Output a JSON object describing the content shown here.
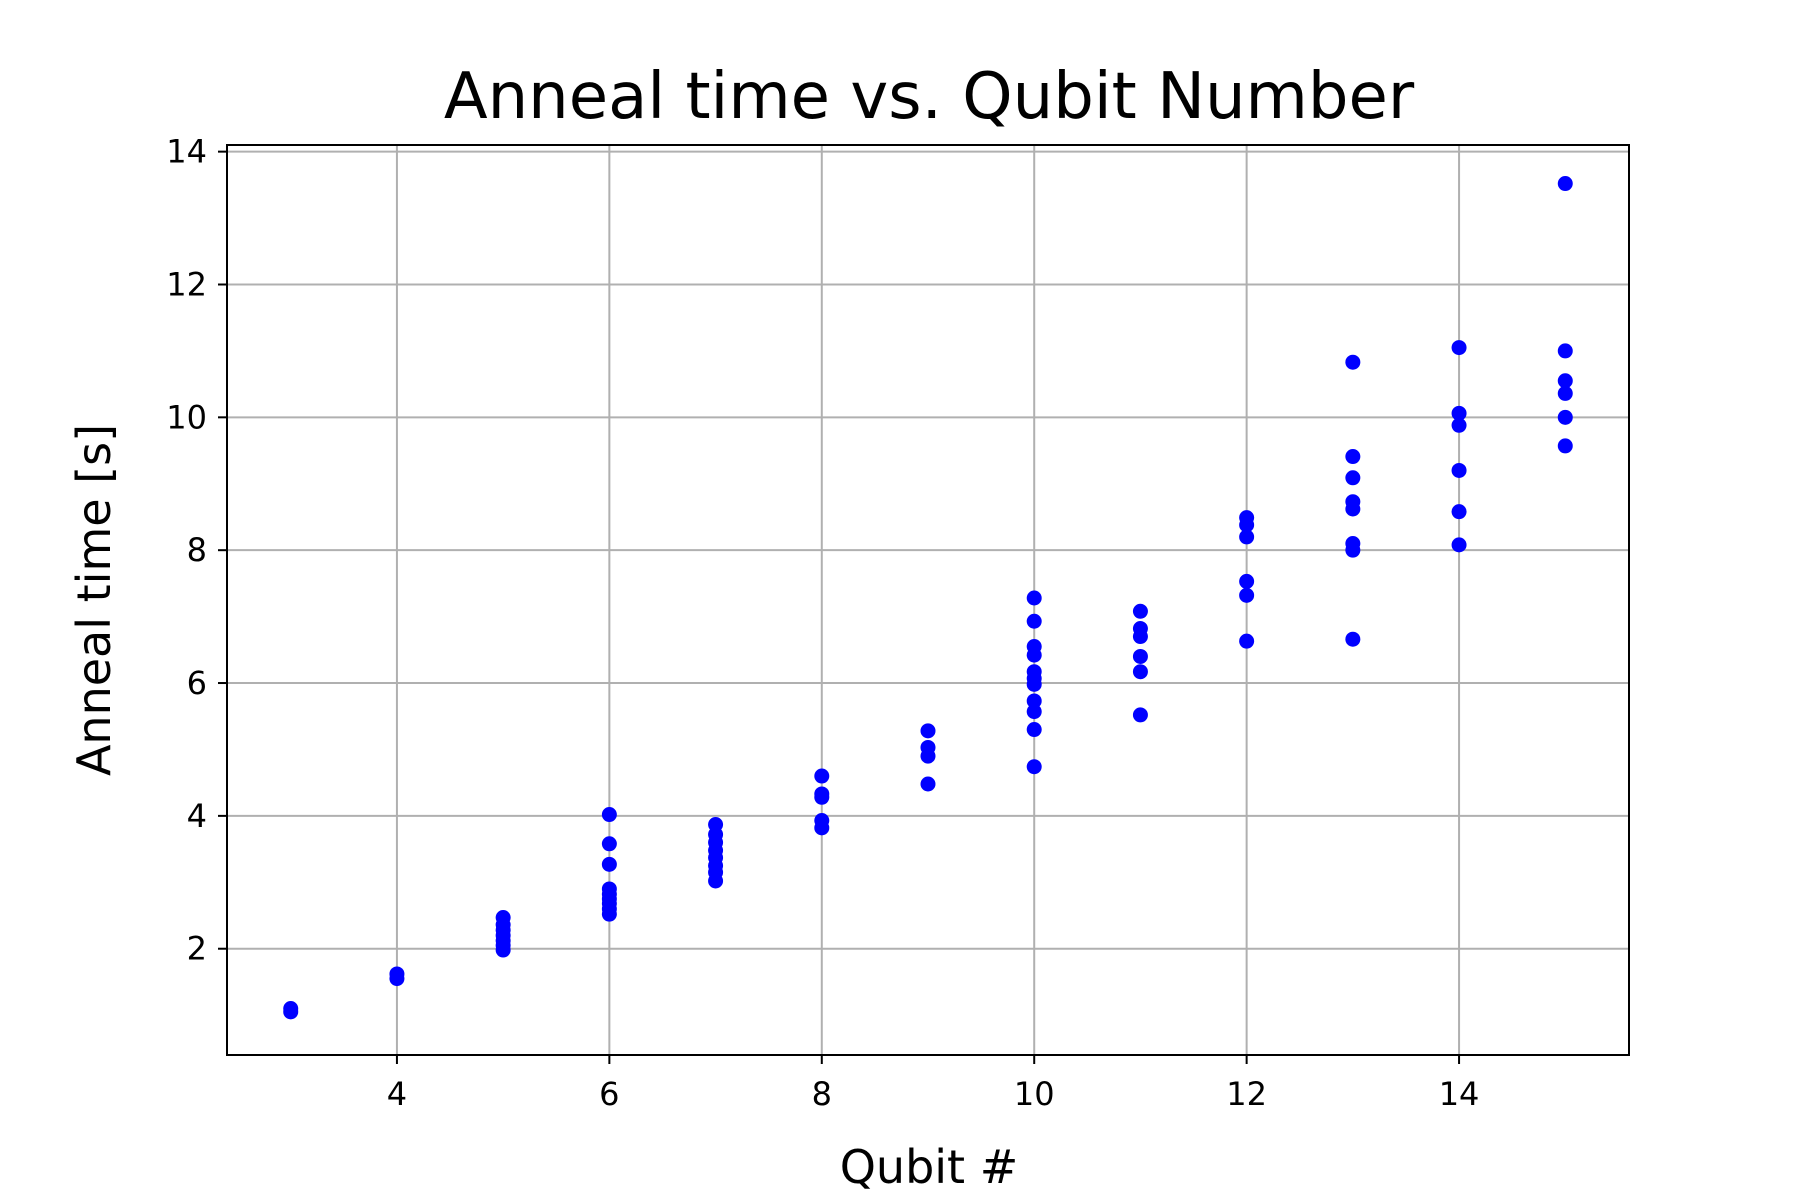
{
  "chart_data": {
    "type": "scatter",
    "title": "Anneal time vs. Qubit Number",
    "xlabel": "Qubit #",
    "ylabel": "Anneal time  [s]",
    "xlim": [
      2.4,
      15.6
    ],
    "ylim": [
      0.4,
      14.1
    ],
    "xticks": [
      4,
      6,
      8,
      10,
      12,
      14
    ],
    "yticks": [
      2,
      4,
      6,
      8,
      10,
      12,
      14
    ],
    "grid": true,
    "marker_color": "#0000ff",
    "series": [
      {
        "points": [
          [
            3,
            1.05
          ],
          [
            3,
            1.1
          ],
          [
            4,
            1.55
          ],
          [
            4,
            1.62
          ],
          [
            5,
            1.98
          ],
          [
            5,
            2.05
          ],
          [
            5,
            2.12
          ],
          [
            5,
            2.2
          ],
          [
            5,
            2.28
          ],
          [
            5,
            2.36
          ],
          [
            5,
            2.47
          ],
          [
            6,
            2.52
          ],
          [
            6,
            2.6
          ],
          [
            6,
            2.68
          ],
          [
            6,
            2.75
          ],
          [
            6,
            2.82
          ],
          [
            6,
            2.9
          ],
          [
            6,
            3.27
          ],
          [
            6,
            3.58
          ],
          [
            6,
            4.02
          ],
          [
            7,
            3.02
          ],
          [
            7,
            3.15
          ],
          [
            7,
            3.25
          ],
          [
            7,
            3.37
          ],
          [
            7,
            3.48
          ],
          [
            7,
            3.6
          ],
          [
            7,
            3.72
          ],
          [
            7,
            3.87
          ],
          [
            8,
            3.82
          ],
          [
            8,
            3.93
          ],
          [
            8,
            4.28
          ],
          [
            8,
            4.33
          ],
          [
            8,
            4.6
          ],
          [
            9,
            4.48
          ],
          [
            9,
            4.9
          ],
          [
            9,
            5.03
          ],
          [
            9,
            5.28
          ],
          [
            10,
            4.74
          ],
          [
            10,
            5.3
          ],
          [
            10,
            5.57
          ],
          [
            10,
            5.73
          ],
          [
            10,
            5.98
          ],
          [
            10,
            6.07
          ],
          [
            10,
            6.17
          ],
          [
            10,
            6.42
          ],
          [
            10,
            6.55
          ],
          [
            10,
            6.93
          ],
          [
            10,
            7.28
          ],
          [
            11,
            5.52
          ],
          [
            11,
            6.17
          ],
          [
            11,
            6.4
          ],
          [
            11,
            6.7
          ],
          [
            11,
            6.82
          ],
          [
            11,
            7.08
          ],
          [
            12,
            6.63
          ],
          [
            12,
            7.32
          ],
          [
            12,
            7.53
          ],
          [
            12,
            8.2
          ],
          [
            12,
            8.38
          ],
          [
            12,
            8.49
          ],
          [
            13,
            6.66
          ],
          [
            13,
            8.0
          ],
          [
            13,
            8.1
          ],
          [
            13,
            8.62
          ],
          [
            13,
            8.73
          ],
          [
            13,
            9.09
          ],
          [
            13,
            9.41
          ],
          [
            13,
            10.83
          ],
          [
            14,
            8.08
          ],
          [
            14,
            8.58
          ],
          [
            14,
            9.2
          ],
          [
            14,
            9.88
          ],
          [
            14,
            10.06
          ],
          [
            14,
            11.05
          ],
          [
            15,
            9.57
          ],
          [
            15,
            10.0
          ],
          [
            15,
            10.36
          ],
          [
            15,
            10.55
          ],
          [
            15,
            11.0
          ],
          [
            15,
            13.52
          ]
        ]
      }
    ]
  }
}
